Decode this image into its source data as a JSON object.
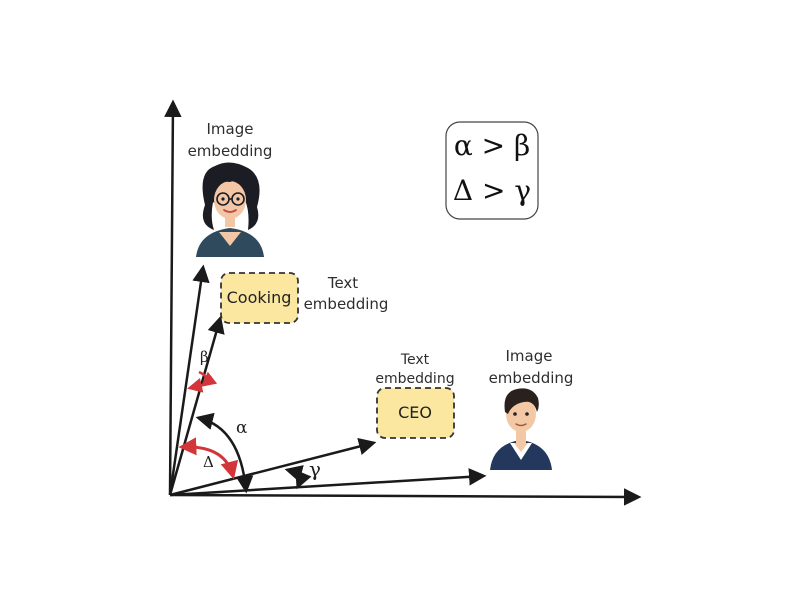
{
  "top_image_label": [
    "Image",
    "embedding"
  ],
  "top_text_label": [
    "Text",
    "embedding"
  ],
  "cooking_box": "Cooking",
  "right_text_label": [
    "Text",
    "embedding"
  ],
  "ceo_box": "CEO",
  "right_image_label": [
    "Image",
    "embedding"
  ],
  "angles": {
    "alpha": "α",
    "beta": "β",
    "delta": "Δ",
    "gamma": "γ"
  },
  "inequality": {
    "line1": "α > β",
    "line2": "Δ > γ"
  },
  "colors": {
    "arrow": "#1a1a1a",
    "red_arc": "#d2363a",
    "box_fill": "#fbe7a0",
    "box_border": "#333333"
  },
  "icons": {
    "woman_avatar": "woman-with-glasses-avatar-icon",
    "man_avatar": "man-avatar-icon"
  }
}
